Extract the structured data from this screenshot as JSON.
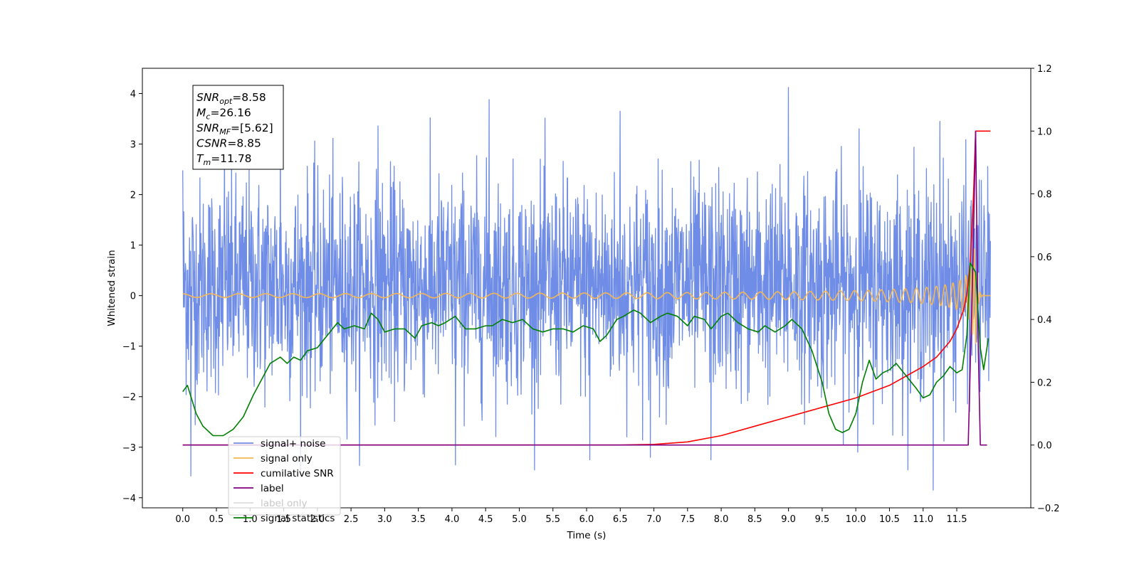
{
  "chart_data": {
    "type": "line",
    "xlabel": "Time (s)",
    "ylabel": "Whitened strain",
    "y2label": "",
    "xlim": [
      -0.6,
      12.6
    ],
    "ylim": [
      -4.2,
      4.5
    ],
    "y2lim": [
      -0.2,
      1.2
    ],
    "x_ticks": [
      0.0,
      0.5,
      1.0,
      1.5,
      2.0,
      2.5,
      3.0,
      3.5,
      4.0,
      4.5,
      5.0,
      5.5,
      6.0,
      6.5,
      7.0,
      7.5,
      8.0,
      8.5,
      9.0,
      9.5,
      10.0,
      10.5,
      11.0,
      11.5
    ],
    "x_tick_labels": [
      "0.0",
      "0.5",
      "1.0",
      "1.5",
      "2.0",
      "2.5",
      "3.0",
      "3.5",
      "4.0",
      "4.5",
      "5.0",
      "5.5",
      "6.0",
      "6.5",
      "7.0",
      "7.5",
      "8.0",
      "8.5",
      "9.0",
      "9.5",
      "10.0",
      "10.5",
      "11.0",
      "11.5"
    ],
    "y_ticks": [
      -4,
      -3,
      -2,
      -1,
      0,
      1,
      2,
      3,
      4
    ],
    "y_tick_labels": [
      "−4",
      "−3",
      "−2",
      "−1",
      "0",
      "1",
      "2",
      "3",
      "4"
    ],
    "y2_ticks": [
      -0.2,
      0.0,
      0.2,
      0.4,
      0.6,
      0.8,
      1.0,
      1.2
    ],
    "y2_tick_labels": [
      "−0.2",
      "0.0",
      "0.2",
      "0.4",
      "0.6",
      "0.8",
      "1.0",
      "1.2"
    ],
    "grid": false,
    "legend_position": "lower-left",
    "stats_box": {
      "lines": [
        {
          "main": "SNR",
          "sub": "opt",
          "value": "=8.58"
        },
        {
          "main": "M",
          "sub": "c",
          "value": "=26.16"
        },
        {
          "main": "SNR",
          "sub": "MF",
          "value": "=[5.62]"
        },
        {
          "main": "CSNR",
          "sub": "",
          "value": "=8.85"
        },
        {
          "main": "T",
          "sub": "m",
          "value": "=11.78"
        }
      ]
    },
    "series": [
      {
        "name": "signal+ noise",
        "color": "#6f8de6",
        "axis": "left",
        "kind": "noise",
        "x_range": [
          0.0,
          12.0
        ],
        "sample_count": 2400,
        "band": [
          -1.2,
          1.6
        ],
        "extremes": [
          -3.85,
          4.12
        ],
        "peaks": [
          {
            "x": 0.0,
            "y": 2.48
          },
          {
            "x": 0.12,
            "y": -3.57
          },
          {
            "x": 0.62,
            "y": 3.02
          },
          {
            "x": 1.45,
            "y": 3.55
          },
          {
            "x": 2.9,
            "y": 3.36
          },
          {
            "x": 4.05,
            "y": -3.35
          },
          {
            "x": 4.55,
            "y": 3.88
          },
          {
            "x": 6.05,
            "y": -3.25
          },
          {
            "x": 6.5,
            "y": 3.65
          },
          {
            "x": 6.95,
            "y": -3.2
          },
          {
            "x": 7.85,
            "y": -3.25
          },
          {
            "x": 9.0,
            "y": 4.12
          },
          {
            "x": 10.05,
            "y": 3.3
          },
          {
            "x": 11.15,
            "y": -3.85
          },
          {
            "x": 11.25,
            "y": 3.45
          }
        ]
      },
      {
        "name": "signal only",
        "color": "#f5b755",
        "axis": "left",
        "kind": "chirp",
        "x_range": [
          0.0,
          12.0
        ],
        "peak_time": 11.78,
        "max_amplitude": 0.95
      },
      {
        "name": "cumilative SNR",
        "color": "#ff0000",
        "axis": "right",
        "x": [
          0.0,
          6.5,
          7.0,
          7.5,
          8.0,
          8.5,
          9.0,
          9.5,
          10.0,
          10.5,
          11.0,
          11.2,
          11.4,
          11.5,
          11.6,
          11.65,
          11.7,
          11.75,
          11.78,
          11.9,
          12.0
        ],
        "y": [
          0.0,
          0.0,
          0.002,
          0.01,
          0.03,
          0.06,
          0.09,
          0.12,
          0.15,
          0.19,
          0.25,
          0.28,
          0.33,
          0.37,
          0.43,
          0.48,
          0.58,
          0.8,
          1.0,
          1.0,
          1.0
        ]
      },
      {
        "name": "label",
        "color": "#800080",
        "axis": "right",
        "x": [
          0.0,
          11.67,
          11.74,
          11.78,
          11.82,
          11.85,
          11.95
        ],
        "y": [
          0.0,
          0.0,
          0.58,
          1.0,
          0.3,
          0.0,
          0.0
        ]
      },
      {
        "name": "label only",
        "color": "#dddddd",
        "axis": "right",
        "hidden": true,
        "x": [],
        "y": []
      },
      {
        "name": "signal statistics",
        "color": "#008000",
        "axis": "right",
        "x": [
          0.0,
          0.07,
          0.2,
          0.3,
          0.45,
          0.6,
          0.75,
          0.9,
          1.05,
          1.2,
          1.3,
          1.45,
          1.55,
          1.65,
          1.75,
          1.85,
          2.0,
          2.15,
          2.3,
          2.4,
          2.55,
          2.7,
          2.8,
          2.9,
          3.0,
          3.15,
          3.3,
          3.45,
          3.55,
          3.7,
          3.8,
          3.9,
          4.05,
          4.2,
          4.35,
          4.5,
          4.6,
          4.75,
          4.9,
          5.05,
          5.2,
          5.35,
          5.5,
          5.65,
          5.8,
          5.95,
          6.1,
          6.2,
          6.3,
          6.45,
          6.55,
          6.7,
          6.8,
          6.95,
          7.1,
          7.2,
          7.35,
          7.5,
          7.6,
          7.75,
          7.85,
          8.0,
          8.1,
          8.25,
          8.4,
          8.55,
          8.65,
          8.8,
          8.95,
          9.05,
          9.2,
          9.35,
          9.5,
          9.6,
          9.7,
          9.8,
          9.9,
          10.0,
          10.1,
          10.2,
          10.3,
          10.4,
          10.5,
          10.6,
          10.75,
          10.9,
          11.0,
          11.1,
          11.2,
          11.3,
          11.4,
          11.5,
          11.58,
          11.65,
          11.7,
          11.78,
          11.85,
          11.9,
          11.97
        ],
        "y": [
          0.17,
          0.19,
          0.1,
          0.06,
          0.03,
          0.03,
          0.05,
          0.09,
          0.16,
          0.22,
          0.26,
          0.28,
          0.26,
          0.28,
          0.27,
          0.3,
          0.31,
          0.35,
          0.39,
          0.37,
          0.38,
          0.37,
          0.42,
          0.4,
          0.36,
          0.37,
          0.37,
          0.34,
          0.38,
          0.39,
          0.38,
          0.39,
          0.41,
          0.37,
          0.37,
          0.38,
          0.38,
          0.4,
          0.39,
          0.4,
          0.37,
          0.36,
          0.37,
          0.37,
          0.36,
          0.38,
          0.37,
          0.33,
          0.35,
          0.4,
          0.41,
          0.43,
          0.42,
          0.39,
          0.41,
          0.42,
          0.41,
          0.38,
          0.41,
          0.4,
          0.37,
          0.41,
          0.42,
          0.39,
          0.37,
          0.36,
          0.38,
          0.36,
          0.38,
          0.4,
          0.37,
          0.3,
          0.2,
          0.1,
          0.05,
          0.04,
          0.05,
          0.1,
          0.2,
          0.27,
          0.21,
          0.23,
          0.24,
          0.26,
          0.22,
          0.18,
          0.15,
          0.16,
          0.2,
          0.22,
          0.25,
          0.23,
          0.24,
          0.35,
          0.58,
          0.55,
          0.31,
          0.24,
          0.34
        ]
      }
    ]
  }
}
